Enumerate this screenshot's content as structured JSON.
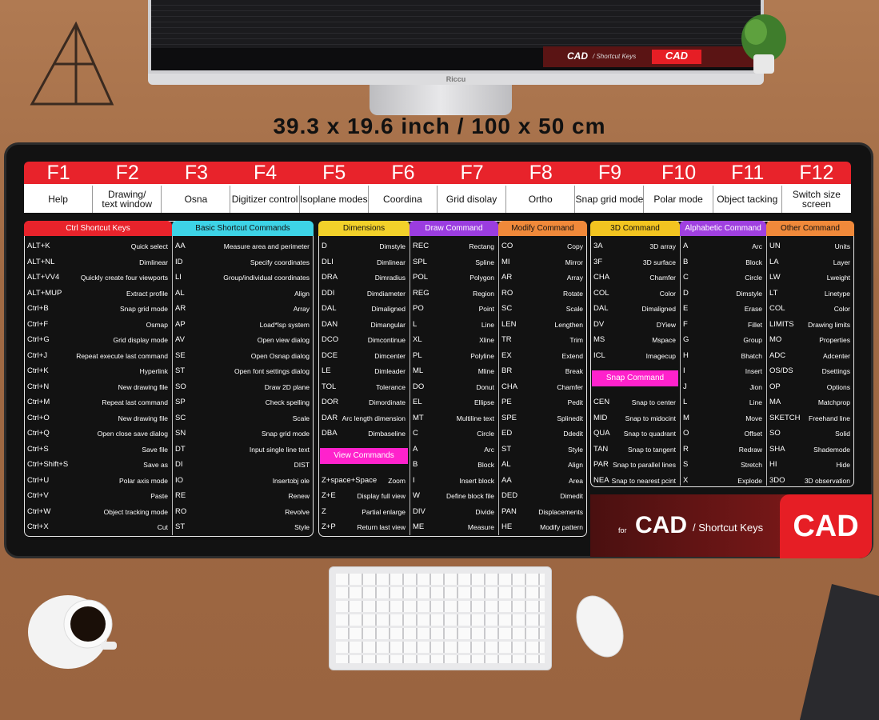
{
  "size_label": "39.3 x 19.6 inch / 100 x 50 cm",
  "monitor": {
    "brand": "Riccu",
    "screen_title": "CAD",
    "screen_subtitle": "/ Shortcut Keys",
    "screen_badge": "CAD"
  },
  "function_keys": [
    {
      "key": "F1",
      "label": "Help"
    },
    {
      "key": "F2",
      "label": "Drawing/\ntext window"
    },
    {
      "key": "F3",
      "label": "Osna"
    },
    {
      "key": "F4",
      "label": "Digitizer control"
    },
    {
      "key": "F5",
      "label": "Isoplane modes"
    },
    {
      "key": "F6",
      "label": "Coordina"
    },
    {
      "key": "F7",
      "label": "Grid disolay"
    },
    {
      "key": "F8",
      "label": "Ortho"
    },
    {
      "key": "F9",
      "label": "Snap grid mode"
    },
    {
      "key": "F10",
      "label": "Polar mode"
    },
    {
      "key": "F11",
      "label": "Object tacking"
    },
    {
      "key": "F12",
      "label": "Switch size\nscreen"
    }
  ],
  "sections": [
    {
      "header": "Ctrl Shortcut Keys",
      "color": "#e8232b",
      "text_color": "#ffffff",
      "rows": [
        [
          "ALT+K",
          "Quick select"
        ],
        [
          "ALT+NL",
          "Dimlinear"
        ],
        [
          "ALT+VV4",
          "Quickly create four viewports"
        ],
        [
          "ALT+MUP",
          "Extract profile"
        ],
        [
          "Ctrl+B",
          "Snap grid mode"
        ],
        [
          "Ctrl+F",
          "Osmap"
        ],
        [
          "Ctrl+G",
          "Grid display mode"
        ],
        [
          "Ctrl+J",
          "Repeat execute last command"
        ],
        [
          "Ctrl+K",
          "Hyperlink"
        ],
        [
          "Ctrl+N",
          "New drawing file"
        ],
        [
          "Ctrl+M",
          "Repeat last command"
        ],
        [
          "Ctrl+O",
          "New drawing file"
        ],
        [
          "Ctrl+Q",
          "Open close save dialog"
        ],
        [
          "Ctrl+S",
          "Save file"
        ],
        [
          "Ctrl+Shift+S",
          "Save as"
        ],
        [
          "Ctrl+U",
          "Polar axis mode"
        ],
        [
          "Ctrl+V",
          "Paste"
        ],
        [
          "Ctrl+W",
          "Object tracking mode"
        ],
        [
          "Ctrl+X",
          "Cut"
        ]
      ]
    },
    {
      "header": "Basic Shortcut Commands",
      "color": "#3dd3e6",
      "text_color": "#111111",
      "rows": [
        [
          "AA",
          "Measure area and perimeter"
        ],
        [
          "ID",
          "Specify coordinates"
        ],
        [
          "LI",
          "Group/individual coordinates"
        ],
        [
          "AL",
          "Align"
        ],
        [
          "AR",
          "Array"
        ],
        [
          "AP",
          "Load*lsp system"
        ],
        [
          "AV",
          "Open view dialog"
        ],
        [
          "SE",
          "Open Osnap dialog"
        ],
        [
          "ST",
          "Open font settings dialog"
        ],
        [
          "SO",
          "Draw 2D plane"
        ],
        [
          "SP",
          "Check spelling"
        ],
        [
          "SC",
          "Scale"
        ],
        [
          "SN",
          "Snap grid mode"
        ],
        [
          "DT",
          "Input single line text"
        ],
        [
          "DI",
          "DIST"
        ],
        [
          "IO",
          "Insertobj ole"
        ],
        [
          "RE",
          "Renew"
        ],
        [
          "RO",
          "Revolve"
        ],
        [
          "ST",
          "Style"
        ]
      ]
    },
    {
      "header": "Dimensions",
      "color": "#f2d12a",
      "text_color": "#111111",
      "rows": [
        [
          "D",
          "Dimstyle"
        ],
        [
          "DLI",
          "Dimlinear"
        ],
        [
          "DRA",
          "Dimradius"
        ],
        [
          "DDI",
          "Dimdiameter"
        ],
        [
          "DAL",
          "Dimaligned"
        ],
        [
          "DAN",
          "Dimangular"
        ],
        [
          "DCO",
          "Dimcontinue"
        ],
        [
          "DCE",
          "Dimcenter"
        ],
        [
          "LE",
          "Dimleader"
        ],
        [
          "TOL",
          "Tolerance"
        ],
        [
          "DOR",
          "Dimordinate"
        ],
        [
          "DAR",
          "Arc length dimension"
        ],
        [
          "DBA",
          "Dimbaseline"
        ]
      ],
      "sub": {
        "header": "View Commands",
        "color": "#ff22cc",
        "rows": [
          [
            "Z+space+Space",
            "Zoom"
          ],
          [
            "Z+E",
            "Display full view"
          ],
          [
            "Z",
            "Partial enlarge"
          ],
          [
            "Z+P",
            "Return last view"
          ]
        ]
      }
    },
    {
      "header": "Draw Command",
      "color": "#9b3de0",
      "text_color": "#ffffff",
      "rows": [
        [
          "REC",
          "Rectang"
        ],
        [
          "SPL",
          "Spline"
        ],
        [
          "POL",
          "Polygon"
        ],
        [
          "REG",
          "Region"
        ],
        [
          "PO",
          "Point"
        ],
        [
          "L",
          "Line"
        ],
        [
          "XL",
          "Xline"
        ],
        [
          "PL",
          "Polyline"
        ],
        [
          "ML",
          "Mline"
        ],
        [
          "DO",
          "Donut"
        ],
        [
          "EL",
          "Ellipse"
        ],
        [
          "MT",
          "Multiline text"
        ],
        [
          "C",
          "Circle"
        ],
        [
          "A",
          "Arc"
        ],
        [
          "B",
          "Block"
        ],
        [
          "I",
          "Insert block"
        ],
        [
          "W",
          "Define block file"
        ],
        [
          "DIV",
          "Divide"
        ],
        [
          "ME",
          "Measure"
        ]
      ]
    },
    {
      "header": "Modify Command",
      "color": "#f0893a",
      "text_color": "#111111",
      "rows": [
        [
          "CO",
          "Copy"
        ],
        [
          "MI",
          "Mirror"
        ],
        [
          "AR",
          "Array"
        ],
        [
          "RO",
          "Rotate"
        ],
        [
          "SC",
          "Scale"
        ],
        [
          "LEN",
          "Lengthen"
        ],
        [
          "TR",
          "Trim"
        ],
        [
          "EX",
          "Extend"
        ],
        [
          "BR",
          "Break"
        ],
        [
          "CHA",
          "Chamfer"
        ],
        [
          "PE",
          "Pedit"
        ],
        [
          "SPE",
          "Splinedit"
        ],
        [
          "ED",
          "Ddedit"
        ],
        [
          "ST",
          "Style"
        ],
        [
          "AL",
          "Align"
        ],
        [
          "AA",
          "Area"
        ],
        [
          "DED",
          "Dimedit"
        ],
        [
          "PAN",
          "Displacements"
        ],
        [
          "HE",
          "Modify pattern"
        ]
      ]
    },
    {
      "header": "3D Command",
      "color": "#f2c420",
      "text_color": "#111111",
      "rows": [
        [
          "3A",
          "3D array"
        ],
        [
          "3F",
          "3D surface"
        ],
        [
          "CHA",
          "Chamfer"
        ],
        [
          "COL",
          "Color"
        ],
        [
          "DAL",
          "Dimaligned"
        ],
        [
          "DV",
          "DYiew"
        ],
        [
          "MS",
          "Mspace"
        ],
        [
          "ICL",
          "Imagecup"
        ]
      ],
      "sub": {
        "header": "Snap Command",
        "color": "#ff22cc",
        "rows": [
          [
            "CEN",
            "Snap to center"
          ],
          [
            "MID",
            "Snap to midocint"
          ],
          [
            "QUA",
            "Snap to quadrant"
          ],
          [
            "TAN",
            "Snap to tangent"
          ],
          [
            "PAR",
            "Snap to parallel lines"
          ],
          [
            "NEA",
            "Snap to nearest pcint"
          ]
        ]
      }
    },
    {
      "header": "Alphabetic Command",
      "color": "#a040e0",
      "text_color": "#ffffff",
      "rows": [
        [
          "A",
          "Arc"
        ],
        [
          "B",
          "Block"
        ],
        [
          "C",
          "Circle"
        ],
        [
          "D",
          "Dimstyle"
        ],
        [
          "E",
          "Erase"
        ],
        [
          "F",
          "Fillet"
        ],
        [
          "G",
          "Group"
        ],
        [
          "H",
          "Bhatch"
        ],
        [
          "I",
          "Insert"
        ],
        [
          "J",
          "Jion"
        ],
        [
          "L",
          "Line"
        ],
        [
          "M",
          "Move"
        ],
        [
          "O",
          "Offset"
        ],
        [
          "R",
          "Redraw"
        ],
        [
          "S",
          "Stretch"
        ],
        [
          "X",
          "Explode"
        ]
      ]
    },
    {
      "header": "Other Command",
      "color": "#f0893a",
      "text_color": "#111111",
      "rows": [
        [
          "UN",
          "Units"
        ],
        [
          "LA",
          "Layer"
        ],
        [
          "LW",
          "Lweight"
        ],
        [
          "LT",
          "Linetype"
        ],
        [
          "COL",
          "Color"
        ],
        [
          "LIMITS",
          "Drawing limits"
        ],
        [
          "MO",
          "Properties"
        ],
        [
          "ADC",
          "Adcenter"
        ],
        [
          "OS/DS",
          "Dsettings"
        ],
        [
          "OP",
          "Options"
        ],
        [
          "MA",
          "Matchprop"
        ],
        [
          "SKETCH",
          "Freehand line"
        ],
        [
          "SO",
          "Solid"
        ],
        [
          "SHA",
          "Shademode"
        ],
        [
          "HI",
          "Hide"
        ],
        [
          "3DO",
          "3D observation"
        ]
      ]
    }
  ],
  "footer": {
    "prefix": "for",
    "title": "CAD",
    "subtitle": "/ Shortcut Keys",
    "badge": "CAD"
  }
}
